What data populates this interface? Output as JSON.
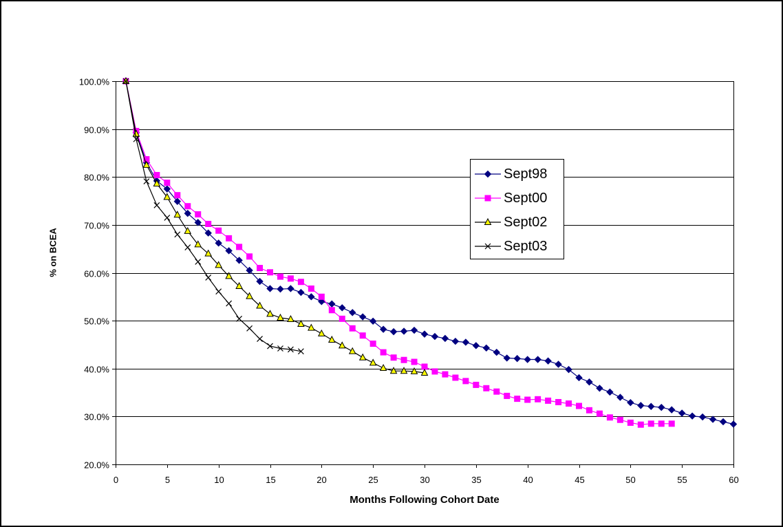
{
  "chart_data": {
    "type": "line",
    "title": "",
    "xlabel": "Months Following Cohort Date",
    "ylabel": "% on BCEA",
    "xlim": [
      0,
      60
    ],
    "ylim": [
      20,
      100
    ],
    "x_ticks": [
      "0",
      "5",
      "10",
      "15",
      "20",
      "25",
      "30",
      "35",
      "40",
      "45",
      "50",
      "55",
      "60"
    ],
    "y_ticks": [
      "20.0%",
      "30.0%",
      "40.0%",
      "50.0%",
      "60.0%",
      "70.0%",
      "80.0%",
      "90.0%",
      "100.0%"
    ],
    "grid": "horizontal",
    "legend_position": "right",
    "series": [
      {
        "name": "Sept98",
        "color": "#000080",
        "marker": "diamond",
        "x": [
          1,
          2,
          3,
          4,
          5,
          6,
          7,
          8,
          9,
          10,
          11,
          12,
          13,
          14,
          15,
          16,
          17,
          18,
          19,
          20,
          21,
          22,
          23,
          24,
          25,
          26,
          27,
          28,
          29,
          30,
          31,
          32,
          33,
          34,
          35,
          36,
          37,
          38,
          39,
          40,
          41,
          42,
          43,
          44,
          45,
          46,
          47,
          48,
          49,
          50,
          51,
          52,
          53,
          54,
          55,
          56,
          57,
          58,
          59,
          60
        ],
        "y": [
          100,
          89.3,
          83,
          79.2,
          77.5,
          74.9,
          72.4,
          70.5,
          68.3,
          66.2,
          64.6,
          62.6,
          60.5,
          58.2,
          56.7,
          56.6,
          56.7,
          55.9,
          55,
          54,
          53.5,
          52.7,
          51.7,
          50.8,
          49.9,
          48.2,
          47.7,
          47.8,
          48,
          47.2,
          46.7,
          46.3,
          45.7,
          45.5,
          44.8,
          44.3,
          43.4,
          42.2,
          42.1,
          41.9,
          41.9,
          41.6,
          40.9,
          39.8,
          38.1,
          37.2,
          35.9,
          35.1,
          34,
          32.9,
          32.3,
          32.1,
          31.9,
          31.4,
          30.7,
          30.1,
          29.9,
          29.4,
          28.9,
          28.4
        ]
      },
      {
        "name": "Sept00",
        "color": "#ff00ff",
        "marker": "square",
        "x": [
          1,
          2,
          3,
          4,
          5,
          6,
          7,
          8,
          9,
          10,
          11,
          12,
          13,
          14,
          15,
          16,
          17,
          18,
          19,
          20,
          21,
          22,
          23,
          24,
          25,
          26,
          27,
          28,
          29,
          30,
          31,
          32,
          33,
          34,
          35,
          36,
          37,
          38,
          39,
          40,
          41,
          42,
          43,
          44,
          45,
          46,
          47,
          48,
          49,
          50,
          51,
          52,
          53,
          54
        ],
        "y": [
          100,
          89.6,
          83.7,
          80.4,
          78.8,
          76.2,
          73.9,
          72.2,
          70.2,
          68.8,
          67.2,
          65.4,
          63.4,
          61,
          60.1,
          59.2,
          58.8,
          58.1,
          56.7,
          55,
          52.2,
          50.4,
          48.4,
          46.9,
          45.2,
          43.4,
          42.3,
          41.8,
          41.4,
          40.4,
          39.4,
          38.8,
          38.1,
          37.4,
          36.6,
          35.9,
          35.2,
          34.3,
          33.7,
          33.5,
          33.6,
          33.3,
          33,
          32.7,
          32.2,
          31.3,
          30.6,
          29.8,
          29.3,
          28.7,
          28.3,
          28.5,
          28.5,
          28.5
        ]
      },
      {
        "name": "Sept02",
        "color": "#ffff00",
        "marker": "triangle",
        "x": [
          1,
          2,
          3,
          4,
          5,
          6,
          7,
          8,
          9,
          10,
          11,
          12,
          13,
          14,
          15,
          16,
          17,
          18,
          19,
          20,
          21,
          22,
          23,
          24,
          25,
          26,
          27,
          28,
          29,
          30
        ],
        "y": [
          100,
          89,
          82.5,
          78.6,
          75.8,
          72.1,
          68.7,
          65.9,
          64,
          61.6,
          59.3,
          57.2,
          55.1,
          53.1,
          51.4,
          50.6,
          50.3,
          49.3,
          48.5,
          47.3,
          46,
          44.8,
          43.6,
          42.3,
          41.2,
          40.1,
          39.5,
          39.5,
          39.4,
          39.1
        ]
      },
      {
        "name": "Sept03",
        "color": "#000000",
        "marker": "x",
        "x": [
          1,
          2,
          3,
          4,
          5,
          6,
          7,
          8,
          9,
          10,
          11,
          12,
          13,
          14,
          15,
          16,
          17,
          18
        ],
        "y": [
          100,
          87.9,
          79.1,
          74.1,
          71.5,
          68,
          65.3,
          62.3,
          59,
          56.1,
          53.6,
          50.4,
          48.4,
          46.2,
          44.7,
          44.2,
          44,
          43.6
        ]
      }
    ]
  }
}
